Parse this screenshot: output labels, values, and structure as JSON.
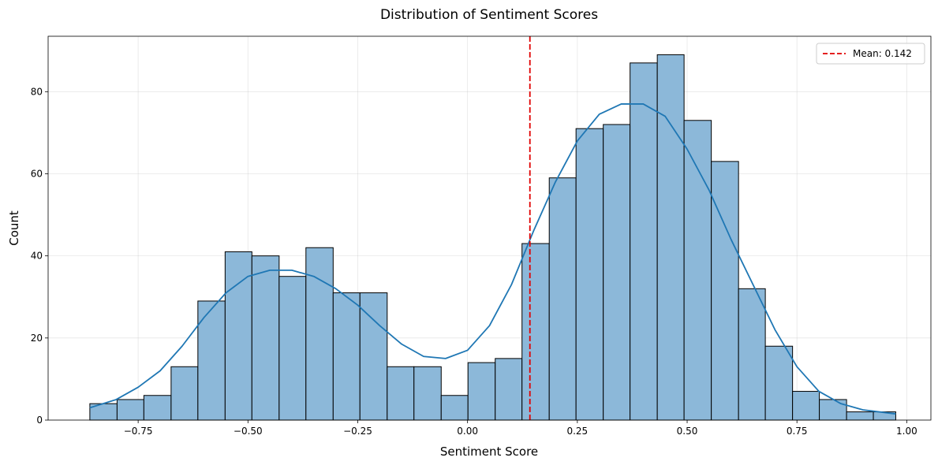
{
  "chart_data": {
    "type": "bar",
    "title": "Distribution of Sentiment Scores",
    "xlabel": "Sentiment Score",
    "ylabel": "Count",
    "xlim": [
      -0.955,
      1.055
    ],
    "ylim": [
      0,
      93.5
    ],
    "xticks": [
      -0.75,
      -0.5,
      -0.25,
      0.0,
      0.25,
      0.5,
      0.75,
      1.0
    ],
    "xtick_labels": [
      "−0.75",
      "−0.50",
      "−0.25",
      "0.00",
      "0.25",
      "0.50",
      "0.75",
      "1.00"
    ],
    "yticks": [
      0,
      20,
      40,
      60,
      80
    ],
    "ytick_labels": [
      "0",
      "20",
      "40",
      "60",
      "80"
    ],
    "grid": true,
    "bin_edges": [
      -0.86,
      -0.798,
      -0.737,
      -0.675,
      -0.614,
      -0.552,
      -0.491,
      -0.429,
      -0.368,
      -0.306,
      -0.245,
      -0.183,
      -0.122,
      -0.06,
      0.001,
      0.063,
      0.124,
      0.186,
      0.247,
      0.309,
      0.37,
      0.432,
      0.493,
      0.555,
      0.617,
      0.678,
      0.74,
      0.801,
      0.863,
      0.924,
      0.975
    ],
    "counts": [
      4,
      5,
      6,
      13,
      29,
      41,
      40,
      35,
      42,
      31,
      31,
      13,
      13,
      6,
      14,
      15,
      43,
      59,
      71,
      72,
      87,
      89,
      73,
      63,
      32,
      18,
      7,
      5,
      2,
      2
    ],
    "bar_color": "#8cb8d9",
    "kde": {
      "color": "#1f77b4",
      "x": [
        -0.86,
        -0.8,
        -0.75,
        -0.7,
        -0.65,
        -0.6,
        -0.55,
        -0.5,
        -0.45,
        -0.4,
        -0.35,
        -0.3,
        -0.25,
        -0.2,
        -0.15,
        -0.1,
        -0.05,
        0.0,
        0.05,
        0.1,
        0.15,
        0.2,
        0.25,
        0.3,
        0.35,
        0.4,
        0.45,
        0.5,
        0.55,
        0.6,
        0.65,
        0.7,
        0.75,
        0.8,
        0.85,
        0.9,
        0.975
      ],
      "y": [
        3,
        5,
        8,
        12,
        18,
        25,
        31,
        35,
        36.5,
        36.5,
        35,
        32,
        28,
        23,
        18.5,
        15.5,
        15,
        17,
        23,
        33,
        46,
        58,
        68,
        74.5,
        77,
        77,
        74,
        66,
        56,
        44,
        33,
        22,
        13,
        7,
        4,
        2.5,
        1.5
      ]
    },
    "mean_line": {
      "x": 0.142,
      "color": "#e00000",
      "label": "Mean: 0.142"
    },
    "legend_placement": "top-right"
  }
}
